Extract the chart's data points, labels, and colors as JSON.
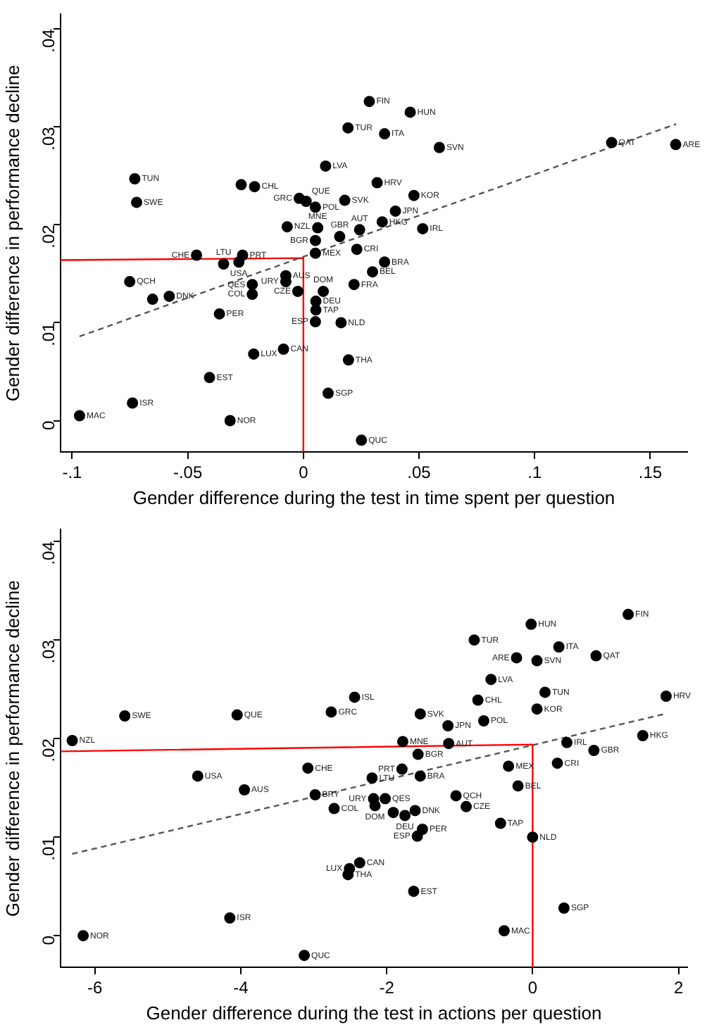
{
  "chart_data": [
    {
      "type": "scatter",
      "xlabel": "Gender difference during the test in time spent per question",
      "ylabel": "Gender difference in performance decline",
      "xlim": [
        -0.105,
        0.166
      ],
      "ylim": [
        -0.0032,
        0.0415
      ],
      "xticks": [
        {
          "value": -0.1,
          "label": "-.1"
        },
        {
          "value": -0.05,
          "label": "-.05"
        },
        0,
        {
          "value": 0.05,
          "label": ".05"
        },
        {
          "value": 0.1,
          "label": ".1"
        },
        {
          "value": 0.15,
          "label": ".15"
        }
      ],
      "yticks": [
        0,
        {
          "value": 0.01,
          "label": ".01"
        },
        {
          "value": 0.02,
          "label": ".02"
        },
        {
          "value": 0.03,
          "label": ".03"
        },
        {
          "value": 0.04,
          "label": ".04"
        }
      ],
      "grid": false,
      "legend": false,
      "series": [
        {
          "type": "scatter",
          "color": "#000000",
          "marker": "circle",
          "x": [
            -0.0968,
            -0.0739,
            -0.0317,
            -0.0406,
            -0.0215,
            -0.0086,
            0.0195,
            0.0107,
            0.0251,
            -0.0363,
            0.0052,
            0.0163,
            0.0054,
            0.0054,
            -0.0024,
            0.0086,
            0.0219,
            -0.0751,
            -0.0652,
            -0.058,
            -0.0221,
            -0.0221,
            -0.0076,
            -0.0076,
            -0.0462,
            -0.0263,
            -0.0345,
            -0.0279,
            0.0052,
            0.0052,
            0.0157,
            0.0231,
            -0.007,
            0.0062,
            0.0243,
            -0.0018,
            -0.0269,
            -0.0211,
            -0.0729,
            -0.0721,
            0.0012,
            0.0052,
            0.0179,
            0.0096,
            0.0193,
            0.0285,
            0.0462,
            0.0351,
            0.0588,
            0.1333,
            0.161,
            0.0319,
            0.0478,
            0.0398,
            0.0341,
            0.0516,
            0.0351,
            0.0299
          ],
          "values": [
            0.0005,
            0.0018,
            0.0,
            0.0044,
            0.0068,
            0.0073,
            0.0062,
            0.0028,
            -0.002,
            0.0109,
            0.0101,
            0.01,
            0.0113,
            0.0122,
            0.0132,
            0.0132,
            0.0139,
            0.0142,
            0.0124,
            0.0127,
            0.0139,
            0.0129,
            0.0148,
            0.0142,
            0.0169,
            0.0169,
            0.016,
            0.0162,
            0.0171,
            0.0184,
            0.0188,
            0.0175,
            0.0198,
            0.0197,
            0.0195,
            0.0227,
            0.0241,
            0.0239,
            0.0247,
            0.0223,
            0.0224,
            0.0218,
            0.0225,
            0.026,
            0.0299,
            0.0326,
            0.0315,
            0.0293,
            0.0279,
            0.0284,
            0.0282,
            0.0243,
            0.023,
            0.0214,
            0.0203,
            0.0196,
            0.0162,
            0.0152
          ],
          "value_labels": [
            "MAC",
            "ISR",
            "NOR",
            "EST",
            "LUX",
            "CAN",
            "THA",
            "SGP",
            "QUC",
            "PER",
            "ESP",
            "NLD",
            "TAP",
            "DEU",
            "CZE",
            "DOM",
            "FRA",
            "QCH",
            null,
            "DNK",
            "QES",
            "COL",
            "AUS",
            "URY",
            "CHE",
            "PRT",
            "LTU",
            "USA",
            "MEX",
            "BGR",
            "GBR",
            "CRI",
            "NZL",
            "MNE",
            "AUT",
            "GRC",
            null,
            "CHL",
            "TUN",
            "SWE",
            "QUE",
            "POL",
            "SVK",
            "LVA",
            "TUR",
            "FIN",
            "HUN",
            "ITA",
            "SVN",
            "QAT",
            "ARE",
            "HRV",
            "KOR",
            "JPN",
            "HKG",
            "IRL",
            "BRA",
            "BEL"
          ]
        },
        {
          "type": "line",
          "color": "#555555",
          "line_style": "dashed",
          "x": [
            -0.0968,
            0.1612
          ],
          "values": [
            0.0086,
            0.0303
          ]
        },
        {
          "type": "line",
          "color": "#ff0000",
          "line_style": "solid",
          "x": [
            -0.105,
            0,
            0
          ],
          "values": [
            0.0164,
            0.0166,
            -0.0032
          ]
        }
      ]
    },
    {
      "type": "scatter",
      "xlabel": "Gender difference during the test in actions per question",
      "ylabel": "Gender difference in performance decline",
      "xlim": [
        -6.47,
        2.12
      ],
      "ylim": [
        -0.0032,
        0.0412
      ],
      "xticks": [
        -6,
        -4,
        -2,
        0,
        2
      ],
      "yticks": [
        0,
        {
          "value": 0.01,
          "label": ".01"
        },
        {
          "value": 0.02,
          "label": ".02"
        },
        {
          "value": 0.03,
          "label": ".03"
        },
        {
          "value": 0.04,
          "label": ".04"
        }
      ],
      "grid": false,
      "legend": false,
      "series": [
        {
          "type": "scatter",
          "color": "#000000",
          "marker": "circle",
          "x": [
            -6.31,
            -5.59,
            -4.05,
            -2.76,
            -2.44,
            -4.59,
            -3.08,
            -3.95,
            -2.98,
            -2.72,
            -2.37,
            -2.51,
            -2.53,
            -4.15,
            -6.16,
            -3.13,
            1.31,
            -0.02,
            -0.8,
            0.36,
            0.87,
            -0.22,
            0.06,
            -0.57,
            0.17,
            -0.75,
            1.83,
            0.06,
            -1.54,
            -1.16,
            -0.67,
            1.51,
            -1.78,
            -1.15,
            0.47,
            0.84,
            -1.57,
            -1.79,
            -2.2,
            -1.54,
            -0.33,
            0.34,
            -0.2,
            -1.05,
            -0.91,
            -2.16,
            -2.02,
            -2.18,
            -1.61,
            -1.75,
            -1.91,
            -1.51,
            -1.58,
            -0.44,
            0.0,
            -1.63,
            0.43,
            -0.39
          ],
          "values": [
            0.0198,
            0.0223,
            0.0224,
            0.0227,
            0.0242,
            0.0162,
            0.017,
            0.0148,
            0.0143,
            0.0129,
            0.0074,
            0.0068,
            0.0062,
            0.0018,
            0.0,
            -0.002,
            0.0326,
            0.0316,
            0.03,
            0.0293,
            0.0284,
            0.0282,
            0.0279,
            0.026,
            0.0247,
            0.0239,
            0.0243,
            0.023,
            0.0225,
            0.0213,
            0.0218,
            0.0203,
            0.0197,
            0.0195,
            0.0196,
            0.0188,
            0.0184,
            0.0169,
            0.016,
            0.0162,
            0.0172,
            0.0175,
            0.0152,
            0.0142,
            0.0131,
            0.0132,
            0.0139,
            0.0139,
            0.0127,
            0.0122,
            0.0125,
            0.0108,
            0.0101,
            0.0114,
            0.01,
            0.0045,
            0.0028,
            0.0005
          ],
          "value_labels": [
            "NZL",
            "SWE",
            "QUE",
            "GRC",
            "ISL",
            "USA",
            "CHE",
            "AUS",
            "BRY",
            "COL",
            "CAN",
            "LUX",
            "THA",
            "ISR",
            "NOR",
            "QUC",
            "FIN",
            "HUN",
            "TUR",
            "ITA",
            "QAT",
            "ARE",
            "SVN",
            "LVA",
            "TUN",
            "CHL",
            "HRV",
            "KOR",
            "SVK",
            "JPN",
            "POL",
            "HKG",
            "MNE",
            "AUT",
            "IRL",
            "GBR",
            "BGR",
            "PRT",
            "LTU",
            "BRA",
            "MEX",
            "CRI",
            "BEL",
            "QCH",
            "CZE",
            "DOM",
            "QES",
            "URY",
            "DNK",
            "DEU",
            null,
            "PER",
            "ESP",
            "TAP",
            "NLD",
            "EST",
            "SGP",
            "MAC"
          ]
        },
        {
          "type": "line",
          "color": "#555555",
          "line_style": "dashed",
          "x": [
            -6.31,
            1.81
          ],
          "values": [
            0.0083,
            0.0225
          ]
        },
        {
          "type": "line",
          "color": "#ff0000",
          "line_style": "solid",
          "x": [
            -6.47,
            0,
            0
          ],
          "values": [
            0.0187,
            0.0194,
            -0.0032
          ]
        }
      ]
    }
  ]
}
